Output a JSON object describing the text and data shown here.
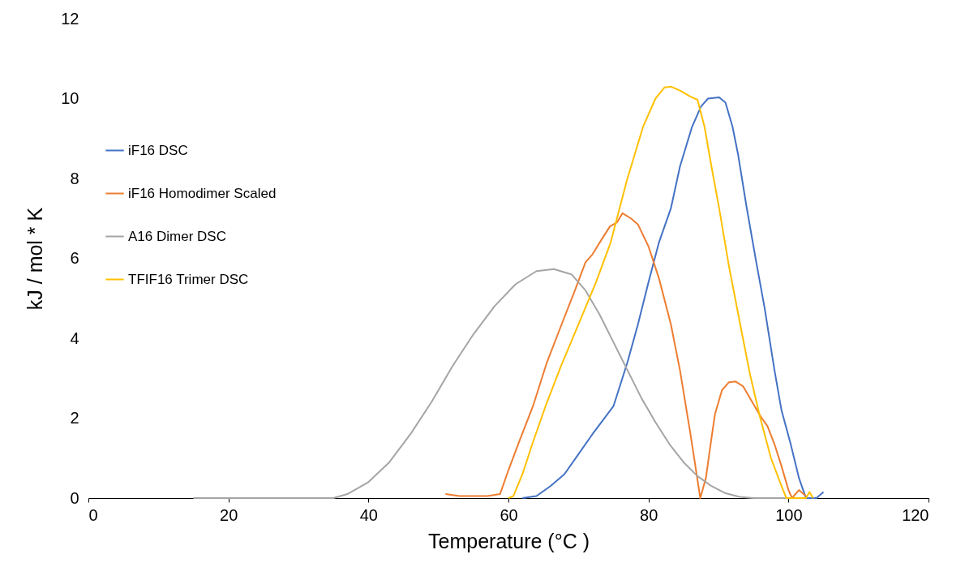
{
  "chart_data": {
    "type": "line",
    "xlabel": "Temperature (°C )",
    "ylabel": "kJ / mol * K",
    "xlim": [
      0,
      120
    ],
    "xticks": [
      0,
      20,
      40,
      60,
      80,
      100,
      120
    ],
    "ylim": [
      0,
      12
    ],
    "yticks": [
      0,
      2,
      4,
      6,
      8,
      10,
      12
    ],
    "grid": false,
    "legend": "left",
    "marker": "none",
    "line_style": "solid",
    "series": [
      {
        "name": "iF16 DSC",
        "color": "#4472c4",
        "x": [
          62,
          64,
          66,
          68,
          70,
          72,
          75,
          77,
          78.5,
          80,
          81.5,
          83.2,
          84.5,
          86.2,
          87.5,
          88.5,
          90.1,
          91,
          92,
          92.8,
          94,
          95.4,
          96.6,
          98,
          99,
          100.3,
          101.5,
          102.5,
          104,
          105
        ],
        "values": [
          0,
          0.05,
          0.3,
          0.6,
          1.1,
          1.6,
          2.3,
          3.4,
          4.35,
          5.4,
          6.4,
          7.25,
          8.3,
          9.28,
          9.8,
          10.0,
          10.03,
          9.9,
          9.3,
          8.6,
          7.3,
          5.9,
          4.75,
          3.2,
          2.2,
          1.36,
          0.5,
          0,
          0,
          0.15
        ]
      },
      {
        "name": "iF16 Homodimer Scaled",
        "color": "#ed7d31",
        "x": [
          51,
          53,
          55,
          57,
          58.8,
          60,
          61.5,
          63.5,
          65.5,
          67.6,
          69.5,
          71,
          72,
          73.4,
          74.5,
          75.5,
          76.3,
          77.5,
          78.5,
          80,
          81.5,
          83.2,
          84.5,
          86,
          87.4,
          88.2,
          89,
          89.5,
          90.5,
          91.5,
          92.4,
          93.5,
          95,
          96,
          97,
          98,
          99,
          100,
          100.5,
          101.5,
          102.5
        ],
        "values": [
          0.1,
          0.05,
          0.05,
          0.05,
          0.1,
          0.7,
          1.4,
          2.3,
          3.4,
          4.35,
          5.2,
          5.9,
          6.1,
          6.5,
          6.8,
          6.9,
          7.13,
          7.0,
          6.85,
          6.3,
          5.5,
          4.35,
          3.2,
          1.6,
          0,
          0.5,
          1.5,
          2.1,
          2.7,
          2.9,
          2.92,
          2.8,
          2.35,
          2.05,
          1.8,
          1.35,
          0.8,
          0.2,
          0,
          0.2,
          0.05
        ]
      },
      {
        "name": "A16 Dimer DSC",
        "color": "#a5a5a5",
        "x": [
          15,
          35,
          37,
          40,
          43,
          46,
          49,
          52,
          55,
          58,
          61,
          64,
          66.5,
          69,
          71,
          73,
          75,
          77,
          79,
          81,
          83,
          85,
          87,
          89,
          91,
          93,
          95,
          100
        ],
        "values": [
          0,
          0,
          0.1,
          0.4,
          0.9,
          1.6,
          2.4,
          3.3,
          4.1,
          4.8,
          5.35,
          5.68,
          5.73,
          5.6,
          5.2,
          4.6,
          3.9,
          3.2,
          2.5,
          1.9,
          1.35,
          0.9,
          0.55,
          0.3,
          0.12,
          0.03,
          0,
          0
        ]
      },
      {
        "name": "TFIF16 Trimer DSC",
        "color": "#ffc000",
        "x": [
          60,
          60.7,
          62,
          63.5,
          65.3,
          67.5,
          70,
          72.5,
          74.6,
          76.9,
          79.2,
          81,
          82.3,
          83.2,
          84.5,
          86,
          87,
          88,
          89,
          90.1,
          91.5,
          93.1,
          94.5,
          95.9,
          97.5,
          99,
          99.7,
          102.5,
          103,
          103.5
        ],
        "values": [
          0,
          0.05,
          0.6,
          1.4,
          2.3,
          3.3,
          4.35,
          5.4,
          6.4,
          7.94,
          9.28,
          10.0,
          10.28,
          10.3,
          10.2,
          10.05,
          9.97,
          9.3,
          8.3,
          7.25,
          5.8,
          4.35,
          3.1,
          2.05,
          1.0,
          0.3,
          0,
          0,
          0.15,
          0
        ]
      }
    ]
  }
}
